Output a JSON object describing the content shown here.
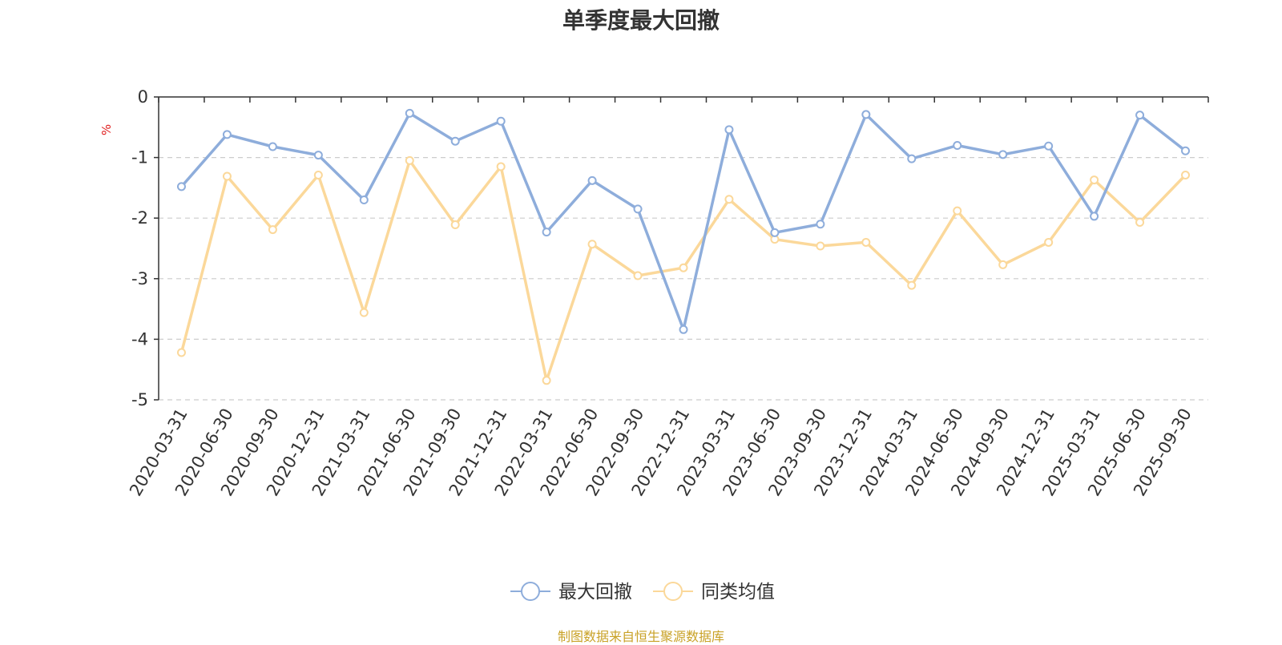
{
  "chart_data": {
    "type": "line",
    "title": "单季度最大回撤",
    "ylabel": "%",
    "ylim": [
      -5,
      0
    ],
    "yticks": [
      0,
      -1,
      -2,
      -3,
      -4,
      -5
    ],
    "grid": true,
    "legend_position": "bottom",
    "categories": [
      "2020-03-31",
      "2020-06-30",
      "2020-09-30",
      "2020-12-31",
      "2021-03-31",
      "2021-06-30",
      "2021-09-30",
      "2021-12-31",
      "2022-03-31",
      "2022-06-30",
      "2022-09-30",
      "2022-12-31",
      "2023-03-31",
      "2023-06-30",
      "2023-09-30",
      "2023-12-31",
      "2024-03-31",
      "2024-06-30",
      "2024-09-30",
      "2024-12-31",
      "2025-03-31",
      "2025-06-30",
      "2025-09-30"
    ],
    "series": [
      {
        "name": "最大回撤",
        "color": "#8eaddb",
        "values": [
          -1.48,
          -0.62,
          -0.82,
          -0.96,
          -1.7,
          -0.27,
          -0.73,
          -0.4,
          -2.23,
          -1.38,
          -1.85,
          -3.84,
          -0.54,
          -2.24,
          -2.1,
          -0.29,
          -1.02,
          -0.8,
          -0.95,
          -0.81,
          -1.97,
          -0.3,
          -0.89
        ]
      },
      {
        "name": "同类均值",
        "color": "#fbd89a",
        "values": [
          -4.22,
          -1.31,
          -2.19,
          -1.29,
          -3.56,
          -1.05,
          -2.11,
          -1.15,
          -4.68,
          -2.43,
          -2.95,
          -2.82,
          -1.69,
          -2.35,
          -2.46,
          -2.4,
          -3.11,
          -1.88,
          -2.77,
          -2.4,
          -1.37,
          -2.07,
          -1.29
        ]
      }
    ],
    "source": "制图数据来自恒生聚源数据库"
  }
}
